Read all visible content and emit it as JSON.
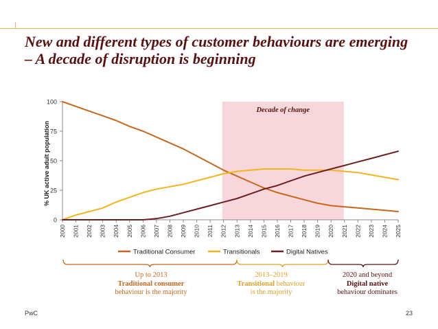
{
  "page": {
    "title": "New and different types of customer behaviours are emerging – A decade of disruption is beginning",
    "footer_left": "PwC",
    "page_number": "23"
  },
  "colors": {
    "traditional": "#c8661c",
    "transitionals": "#f2b51c",
    "digital": "#6b1e22",
    "band": "#f8d7dc",
    "transitional_text": "#e0a024",
    "traditional_text": "#c8661c",
    "dark_text": "#5a1010"
  },
  "chart_data": {
    "type": "line",
    "x": [
      "2000",
      "2001",
      "2002",
      "2003",
      "2004",
      "2005",
      "2006",
      "2007",
      "2008",
      "2009",
      "2010",
      "2011",
      "2012",
      "2013",
      "2014",
      "2015",
      "2016",
      "2017",
      "2018",
      "2019",
      "2020",
      "2021",
      "2022",
      "2023",
      "2024",
      "2025"
    ],
    "series": [
      {
        "name": "Traditional Consumer",
        "values": [
          100,
          96,
          92,
          88,
          84,
          79,
          75,
          70,
          65,
          60,
          54,
          48,
          42,
          37,
          32,
          27,
          23,
          20,
          17,
          14,
          12,
          11,
          10,
          9,
          8,
          7
        ]
      },
      {
        "name": "Transitionals",
        "values": [
          0,
          4,
          7,
          10,
          15,
          19,
          23,
          26,
          28,
          30,
          33,
          36,
          39,
          41,
          42,
          43,
          43,
          43,
          42,
          42,
          42,
          41,
          40,
          38,
          36,
          34
        ]
      },
      {
        "name": "Digital Natives",
        "values": [
          0,
          0,
          0,
          0,
          0,
          0,
          0,
          1,
          3,
          6,
          9,
          12,
          15,
          18,
          22,
          26,
          29,
          33,
          37,
          40,
          43,
          46,
          49,
          52,
          55,
          58
        ]
      }
    ],
    "ylabel": "% UK active adult population",
    "ylim": [
      0,
      100
    ],
    "yticks": [
      0,
      25,
      50,
      75,
      100
    ],
    "legend_position": "bottom",
    "highlight": {
      "label": "Decade of change",
      "from": "2012",
      "to": "2021"
    }
  },
  "annotations": [
    {
      "line1": "Up to 2013",
      "line2": "Traditional consumer",
      "line3": "behaviour is the majority"
    },
    {
      "line1": "2013–2019",
      "line2": "Transitional",
      "line2b": " behaviour",
      "line3": "is the majority"
    },
    {
      "line1": "2020 and beyond",
      "line2": "Digital native",
      "line3": "behaviour dominates"
    }
  ]
}
